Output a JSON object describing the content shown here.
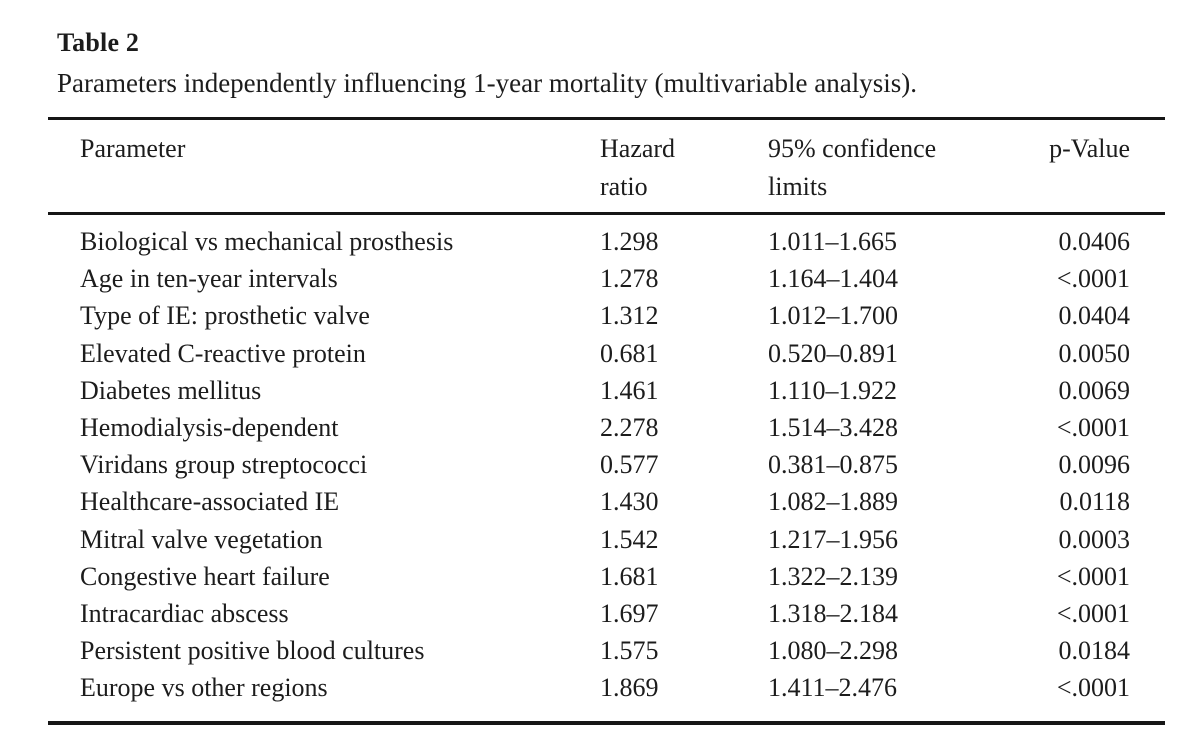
{
  "table": {
    "label": "Table 2",
    "caption": "Parameters independently influencing 1-year mortality (multivariable analysis).",
    "columns": [
      "Parameter",
      "Hazard ratio",
      "95% confidence limits",
      "p-Value"
    ],
    "rows": [
      [
        "Biological vs mechanical prosthesis",
        "1.298",
        "1.011–1.665",
        "0.0406"
      ],
      [
        "Age in ten-year intervals",
        "1.278",
        "1.164–1.404",
        "<.0001"
      ],
      [
        "Type of IE: prosthetic valve",
        "1.312",
        "1.012–1.700",
        "0.0404"
      ],
      [
        "Elevated C-reactive protein",
        "0.681",
        "0.520–0.891",
        "0.0050"
      ],
      [
        "Diabetes mellitus",
        "1.461",
        "1.110–1.922",
        "0.0069"
      ],
      [
        "Hemodialysis-dependent",
        "2.278",
        "1.514–3.428",
        "<.0001"
      ],
      [
        "Viridans group streptococci",
        "0.577",
        "0.381–0.875",
        "0.0096"
      ],
      [
        "Healthcare-associated IE",
        "1.430",
        "1.082–1.889",
        "0.0118"
      ],
      [
        "Mitral valve vegetation",
        "1.542",
        "1.217–1.956",
        "0.0003"
      ],
      [
        "Congestive heart failure",
        "1.681",
        "1.322–2.139",
        "<.0001"
      ],
      [
        "Intracardiac abscess",
        "1.697",
        "1.318–2.184",
        "<.0001"
      ],
      [
        "Persistent positive blood cultures",
        "1.575",
        "1.080–2.298",
        "0.0184"
      ],
      [
        "Europe vs other regions",
        "1.869",
        "1.411–2.476",
        "<.0001"
      ]
    ]
  },
  "colors": {
    "text": "#1c1c1c",
    "rule": "#161616",
    "background": "#ffffff"
  }
}
